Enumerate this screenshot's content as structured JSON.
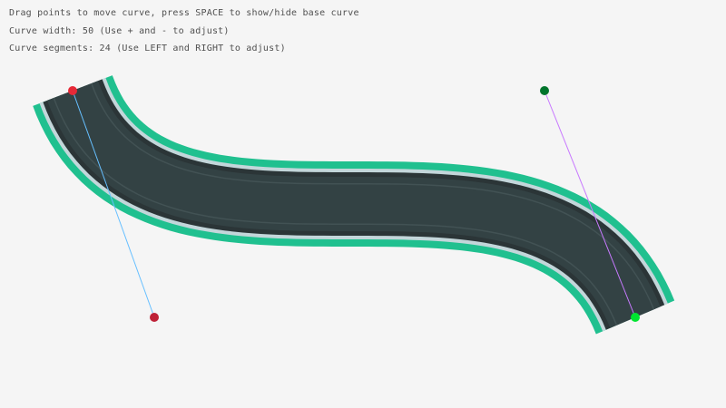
{
  "instructions": {
    "line1": "Drag points to move curve, press SPACE to show/hide base curve",
    "line2": "Curve width: 50 (Use + and - to adjust)",
    "line3": "Curve segments: 24 (Use LEFT and RIGHT to adjust)"
  },
  "curve": {
    "width": 50,
    "segments": 24,
    "start": [
      80,
      100
    ],
    "start_control": [
      170,
      350
    ],
    "end_control": [
      600,
      100
    ],
    "end": [
      700,
      350
    ]
  },
  "colors": {
    "road_edge": "#20c08f",
    "road_stripe": "#c3d6da",
    "road_border": "#2b3537",
    "road_body": "#334244",
    "lane_line": "#425254",
    "start_point": "#e62937",
    "start_control": "#be2137",
    "end_control": "#00752c",
    "end_point": "#00e430",
    "start_handle_line": "#66bfff",
    "end_handle_line": "#c87aff"
  }
}
